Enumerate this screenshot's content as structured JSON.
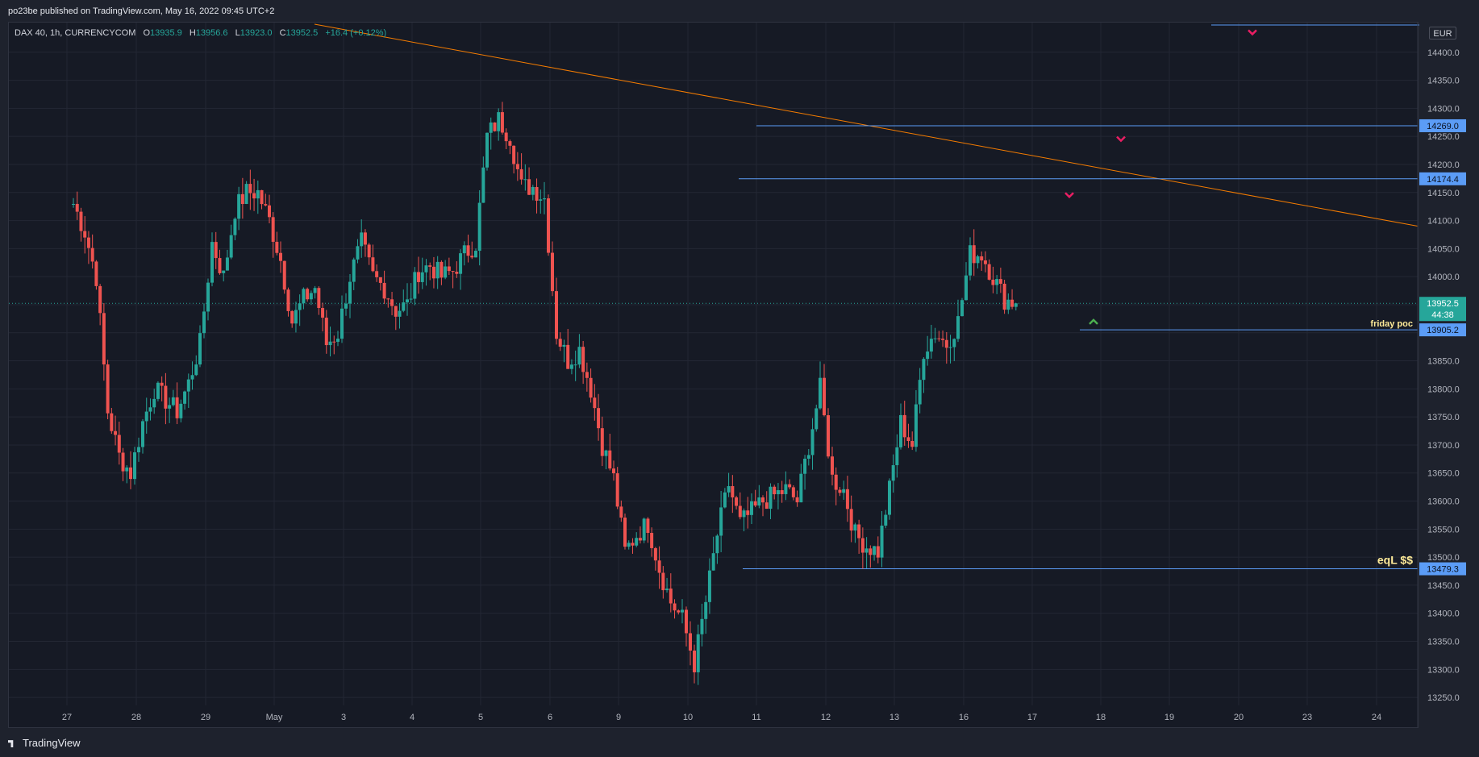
{
  "header": {
    "published": "po23be published on TradingView.com, May 16, 2022 09:45 UTC+2"
  },
  "legend": {
    "symbol": "DAX 40, 1h, CURRENCYCOM",
    "o_label": "O",
    "o_value": "13935.9",
    "h_label": "H",
    "h_value": "13956.6",
    "l_label": "L",
    "l_value": "13923.0",
    "c_label": "C",
    "c_value": "13952.5",
    "change": "+16.4 (+0.12%)"
  },
  "currency": "EUR",
  "footer": {
    "brand": "TradingView"
  },
  "colors": {
    "up": "#26a69a",
    "down": "#ef5350",
    "level": "#5b9cf6",
    "trendline": "#f57c00",
    "arrow_down": "#e91e63",
    "arrow_up": "#4caf50",
    "text_annotation": "#ffeb99"
  },
  "chart_data": {
    "type": "candlestick",
    "symbol": "DAX 40",
    "timeframe": "1h",
    "ylim": [
      13220,
      14450
    ],
    "y_ticks": [
      13250,
      13300,
      13350,
      13400,
      13450,
      13500,
      13550,
      13600,
      13650,
      13700,
      13750,
      13800,
      13850,
      13900,
      13950,
      14000,
      14050,
      14100,
      14150,
      14200,
      14250,
      14300,
      14350,
      14400
    ],
    "x_ticks": [
      "27",
      "28",
      "29",
      "May",
      "3",
      "4",
      "5",
      "6",
      "9",
      "10",
      "11",
      "12",
      "13",
      "16",
      "17",
      "18",
      "19",
      "20",
      "23",
      "24"
    ],
    "last_price": "13952.5",
    "countdown": "44:38",
    "levels": [
      {
        "price": 14269.0,
        "label": "14269.0"
      },
      {
        "price": 14174.4,
        "label": "14174.4"
      },
      {
        "price": 13905.2,
        "label": "13905.2",
        "annotation": "friday poc"
      },
      {
        "price": 13479.3,
        "label": "13479.3",
        "annotation": "eqL $$"
      }
    ],
    "path": [
      [
        "27",
        14130
      ],
      [
        "27",
        14080
      ],
      [
        "27",
        14000
      ],
      [
        "27",
        13760
      ],
      [
        "27",
        13680
      ],
      [
        "27",
        13650
      ],
      [
        "28",
        13740
      ],
      [
        "28",
        13800
      ],
      [
        "28",
        13780
      ],
      [
        "28",
        13760
      ],
      [
        "28",
        13810
      ],
      [
        "28",
        13880
      ],
      [
        "29",
        14060
      ],
      [
        "29",
        14000
      ],
      [
        "29",
        14120
      ],
      [
        "29",
        14150
      ],
      [
        "29",
        14150
      ],
      [
        "29",
        14100
      ],
      [
        "May",
        14030
      ],
      [
        "May",
        13920
      ],
      [
        "May",
        13960
      ],
      [
        "May",
        13980
      ],
      [
        "May",
        13880
      ],
      [
        "May",
        13900
      ],
      [
        "3",
        14000
      ],
      [
        "3",
        14060
      ],
      [
        "3",
        14000
      ],
      [
        "3",
        13980
      ],
      [
        "3",
        13940
      ],
      [
        "3",
        13950
      ],
      [
        "4",
        14010
      ],
      [
        "4",
        14020
      ],
      [
        "4",
        14000
      ],
      [
        "4",
        14010
      ],
      [
        "4",
        14040
      ],
      [
        "4",
        14060
      ],
      [
        "5",
        14250
      ],
      [
        "5",
        14280
      ],
      [
        "5",
        14250
      ],
      [
        "5",
        14160
      ],
      [
        "5",
        14160
      ],
      [
        "5",
        14140
      ],
      [
        "6",
        13900
      ],
      [
        "6",
        13850
      ],
      [
        "6",
        13870
      ],
      [
        "6",
        13800
      ],
      [
        "6",
        13700
      ],
      [
        "6",
        13640
      ],
      [
        "9",
        13510
      ],
      [
        "9",
        13540
      ],
      [
        "9",
        13560
      ],
      [
        "9",
        13480
      ],
      [
        "9",
        13420
      ],
      [
        "9",
        13390
      ],
      [
        "10",
        13310
      ],
      [
        "10",
        13420
      ],
      [
        "10",
        13540
      ],
      [
        "10",
        13630
      ],
      [
        "10",
        13560
      ],
      [
        "10",
        13580
      ],
      [
        "11",
        13600
      ],
      [
        "11",
        13610
      ],
      [
        "11",
        13620
      ],
      [
        "11",
        13600
      ],
      [
        "11",
        13700
      ],
      [
        "11",
        13800
      ],
      [
        "12",
        13640
      ],
      [
        "12",
        13620
      ],
      [
        "12",
        13540
      ],
      [
        "12",
        13520
      ],
      [
        "12",
        13510
      ],
      [
        "12",
        13620
      ],
      [
        "13",
        13740
      ],
      [
        "13",
        13700
      ],
      [
        "13",
        13870
      ],
      [
        "13",
        13900
      ],
      [
        "13",
        13880
      ],
      [
        "13",
        13920
      ],
      [
        "16",
        14040
      ],
      [
        "16",
        14040
      ],
      [
        "16",
        14000
      ],
      [
        "16",
        13960
      ],
      [
        "16",
        13952.5
      ]
    ],
    "trendline": {
      "from": {
        "date": "26",
        "price": 14450
      },
      "to": {
        "date": "24",
        "price": 14090
      }
    },
    "arrows_down": [
      {
        "date": "18",
        "price": 14245
      },
      {
        "date": "17",
        "price": 14145
      },
      {
        "date": "20",
        "price": 14435
      }
    ],
    "arrows_up": [
      {
        "date": "17",
        "price": 13920
      }
    ]
  }
}
